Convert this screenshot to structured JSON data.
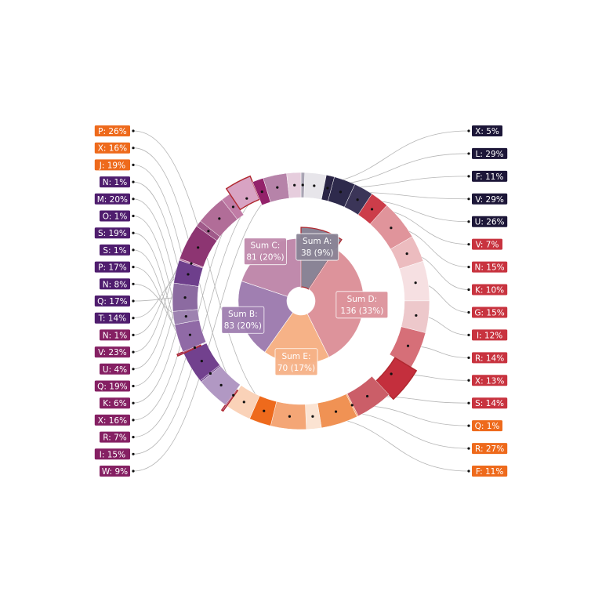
{
  "chart_data": {
    "type": "sunburst",
    "inner": [
      {
        "name": "Sum A:",
        "value": 38,
        "label": "38 (9%)",
        "color": "#8a8496",
        "group": "A"
      },
      {
        "name": "Sum D:",
        "value": 136,
        "label": "136 (33%)",
        "color": "#dd939b",
        "group": "D"
      },
      {
        "name": "Sum E:",
        "value": 70,
        "label": "70 (17%)",
        "color": "#f6b287",
        "group": "E"
      },
      {
        "name": "Sum B:",
        "value": 83,
        "label": "83 (20%)",
        "color": "#a07fb1",
        "group": "B"
      },
      {
        "name": "Sum C:",
        "value": 81,
        "label": "81 (20%)",
        "color": "#c08aac",
        "group": "C"
      }
    ],
    "outer": [
      {
        "label": "X: 5%",
        "group": "A",
        "value": 1.9,
        "color": "#a9a4b4",
        "side": "right"
      },
      {
        "label": "L: 29%",
        "group": "A",
        "value": 11.0,
        "color": "#e7e5ea",
        "side": "right"
      },
      {
        "label": "F: 11%",
        "group": "A",
        "value": 4.2,
        "color": "#2a2445",
        "side": "right"
      },
      {
        "label": "V: 29%",
        "group": "A",
        "value": 11.0,
        "color": "#2e2a4c",
        "side": "right"
      },
      {
        "label": "U: 26%",
        "group": "A",
        "value": 9.9,
        "color": "#3b3558",
        "side": "right"
      },
      {
        "label": "V: 7%",
        "group": "D",
        "value": 9.5,
        "color": "#cc3d4a",
        "side": "right"
      },
      {
        "label": "N: 15%",
        "group": "D",
        "value": 20.4,
        "color": "#e0949b",
        "side": "right"
      },
      {
        "label": "K: 10%",
        "group": "D",
        "value": 13.6,
        "color": "#ecbcbf",
        "side": "right"
      },
      {
        "label": "G: 15%",
        "group": "D",
        "value": 20.4,
        "color": "#f6e0e2",
        "side": "right"
      },
      {
        "label": "I: 12%",
        "group": "D",
        "value": 16.3,
        "color": "#edc8cb",
        "side": "right"
      },
      {
        "label": "R: 14%",
        "group": "D",
        "value": 19.0,
        "color": "#d66f78",
        "side": "right"
      },
      {
        "label": "X: 13%",
        "group": "D",
        "value": 17.7,
        "color": "#c42f3d",
        "side": "right",
        "explode": true
      },
      {
        "label": "S: 14%",
        "group": "D",
        "value": 19.0,
        "color": "#cb5e68",
        "side": "right"
      },
      {
        "label": "Q: 1%",
        "group": "E",
        "value": 0.7,
        "color": "#f6a372",
        "side": "right"
      },
      {
        "label": "R: 27%",
        "group": "E",
        "value": 18.9,
        "color": "#f09254",
        "side": "right"
      },
      {
        "label": "F: 11%",
        "group": "E",
        "value": 7.7,
        "color": "#fbe3d2",
        "side": "right"
      },
      {
        "label": "P: 26%",
        "group": "E",
        "value": 18.2,
        "color": "#f4a676",
        "side": "left"
      },
      {
        "label": "X: 16%",
        "group": "E",
        "value": 11.2,
        "color": "#ee6a1c",
        "side": "left"
      },
      {
        "label": "J: 19%",
        "group": "E",
        "value": 13.3,
        "color": "#fad2b8",
        "side": "left"
      },
      {
        "label": "N: 1%",
        "group": "B",
        "value": 0.8,
        "color": "#b98fc5",
        "side": "left",
        "explode": true
      },
      {
        "label": "M: 20%",
        "group": "B",
        "value": 16.6,
        "color": "#b198c3",
        "side": "left"
      },
      {
        "label": "O: 1%",
        "group": "B",
        "value": 0.8,
        "color": "#7a4e95",
        "side": "left"
      },
      {
        "label": "S: 19%",
        "group": "B",
        "value": 15.8,
        "color": "#72418e",
        "side": "left"
      },
      {
        "label": "S: 1%",
        "group": "B",
        "value": 0.8,
        "color": "#a56fb4",
        "side": "left",
        "explode": true
      },
      {
        "label": "P: 17%",
        "group": "B",
        "value": 14.1,
        "color": "#906aa6",
        "side": "left"
      },
      {
        "label": "N: 8%",
        "group": "B",
        "value": 6.6,
        "color": "#9d82b0",
        "side": "left"
      },
      {
        "label": "Q: 17%",
        "group": "B",
        "value": 14.1,
        "color": "#8c6ba1",
        "side": "left"
      },
      {
        "label": "T: 14%",
        "group": "B",
        "value": 11.6,
        "color": "#6e3f8c",
        "side": "left"
      },
      {
        "label": "N: 1%",
        "group": "C",
        "value": 0.8,
        "color": "#b7739f",
        "side": "left"
      },
      {
        "label": "V: 23%",
        "group": "C",
        "value": 18.6,
        "color": "#8d3572",
        "side": "left"
      },
      {
        "label": "U: 4%",
        "group": "C",
        "value": 3.2,
        "color": "#a05a8a",
        "side": "left"
      },
      {
        "label": "Q: 19%",
        "group": "C",
        "value": 15.4,
        "color": "#b16d98",
        "side": "left"
      },
      {
        "label": "K: 6%",
        "group": "C",
        "value": 4.9,
        "color": "#c07ca6",
        "side": "left"
      },
      {
        "label": "X: 16%",
        "group": "C",
        "value": 13.0,
        "color": "#d8a3c3",
        "side": "left",
        "explode": true
      },
      {
        "label": "R: 7%",
        "group": "C",
        "value": 5.7,
        "color": "#93226a",
        "side": "left"
      },
      {
        "label": "I: 15%",
        "group": "C",
        "value": 12.1,
        "color": "#b683a9",
        "side": "left"
      },
      {
        "label": "W: 9%",
        "group": "C",
        "value": 7.3,
        "color": "#e6cddd",
        "side": "left"
      }
    ],
    "label_colors": {
      "A": "#1c1638",
      "D": "#c8333f",
      "E": "#ee6a1c",
      "B": "#4f1d6e",
      "C": "#852063"
    }
  }
}
